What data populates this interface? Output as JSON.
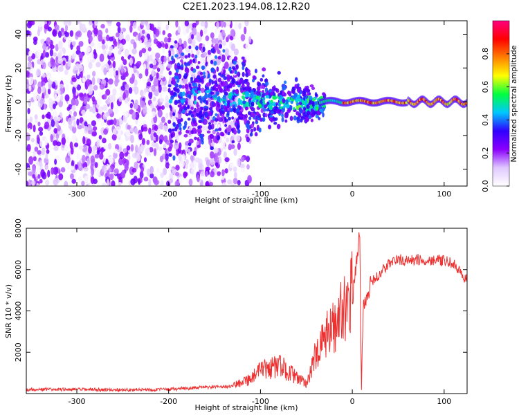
{
  "title": "C2E1.2023.194.08.12.R20",
  "colors": {
    "snr_line": "#ee3030",
    "axis": "#000000",
    "background": "#ffffff"
  },
  "chart_data": [
    {
      "type": "heatmap",
      "xlabel": "Height of straight line (km)",
      "ylabel": "Frequency (Hz)",
      "xlim": [
        -355,
        125
      ],
      "ylim": [
        -50,
        48
      ],
      "x_ticks": [
        -300,
        -200,
        -100,
        0,
        100
      ],
      "x_tick_labels": [
        "-300",
        "-200",
        "-100",
        "0",
        "100"
      ],
      "y_ticks": [
        -40,
        -20,
        0,
        20,
        40
      ],
      "y_tick_labels": [
        "-40",
        "-20",
        "0",
        "20",
        "40"
      ],
      "colorbar": {
        "label": "Normalized spectral amplitude",
        "range": [
          0,
          1
        ],
        "ticks": [
          0.0,
          0.2,
          0.4,
          0.6,
          0.8
        ],
        "tick_labels": [
          "0.0",
          "0.2",
          "0.4",
          "0.6",
          "0.8"
        ],
        "colormap": [
          "#ffffff",
          "#e0c8ff",
          "#8a00ff",
          "#3000ff",
          "#00c8ff",
          "#00ff40",
          "#ffff00",
          "#ff8000",
          "#ff0000",
          "#ff0080"
        ]
      },
      "description_of_structure": {
        "noise_region_x": [
          -355,
          -120
        ],
        "convergence_region_x": [
          -200,
          -30
        ],
        "tone_region_x": [
          -30,
          125
        ],
        "tone_frequency": 0
      }
    },
    {
      "type": "line",
      "xlabel": "Height of straight line (km)",
      "ylabel": "SNR (10 * v/v)",
      "xlim": [
        -355,
        125
      ],
      "ylim": [
        0,
        8000
      ],
      "x_ticks": [
        -300,
        -200,
        -100,
        0,
        100
      ],
      "x_tick_labels": [
        "-300",
        "-200",
        "-100",
        "0",
        "100"
      ],
      "y_ticks": [
        2000,
        4000,
        6000,
        8000
      ],
      "y_tick_labels": [
        "2000",
        "4000",
        "6000",
        "8000"
      ],
      "series": [
        {
          "x": [
            -355,
            -300,
            -250,
            -200,
            -160,
            -130,
            -110,
            -100,
            -90,
            -80,
            -70,
            -60,
            -50,
            -40,
            -30,
            -20,
            -10,
            0,
            8,
            10,
            12,
            20,
            30,
            40,
            50,
            60,
            70,
            80,
            90,
            100,
            110,
            118,
            125
          ],
          "values": [
            200,
            200,
            180,
            200,
            300,
            350,
            600,
            900,
            1000,
            1100,
            900,
            600,
            400,
            1500,
            2500,
            3000,
            3800,
            4500,
            7800,
            300,
            4200,
            5300,
            5800,
            6300,
            6500,
            6400,
            6500,
            6400,
            6500,
            6400,
            6300,
            5800,
            5500
          ]
        }
      ]
    }
  ]
}
